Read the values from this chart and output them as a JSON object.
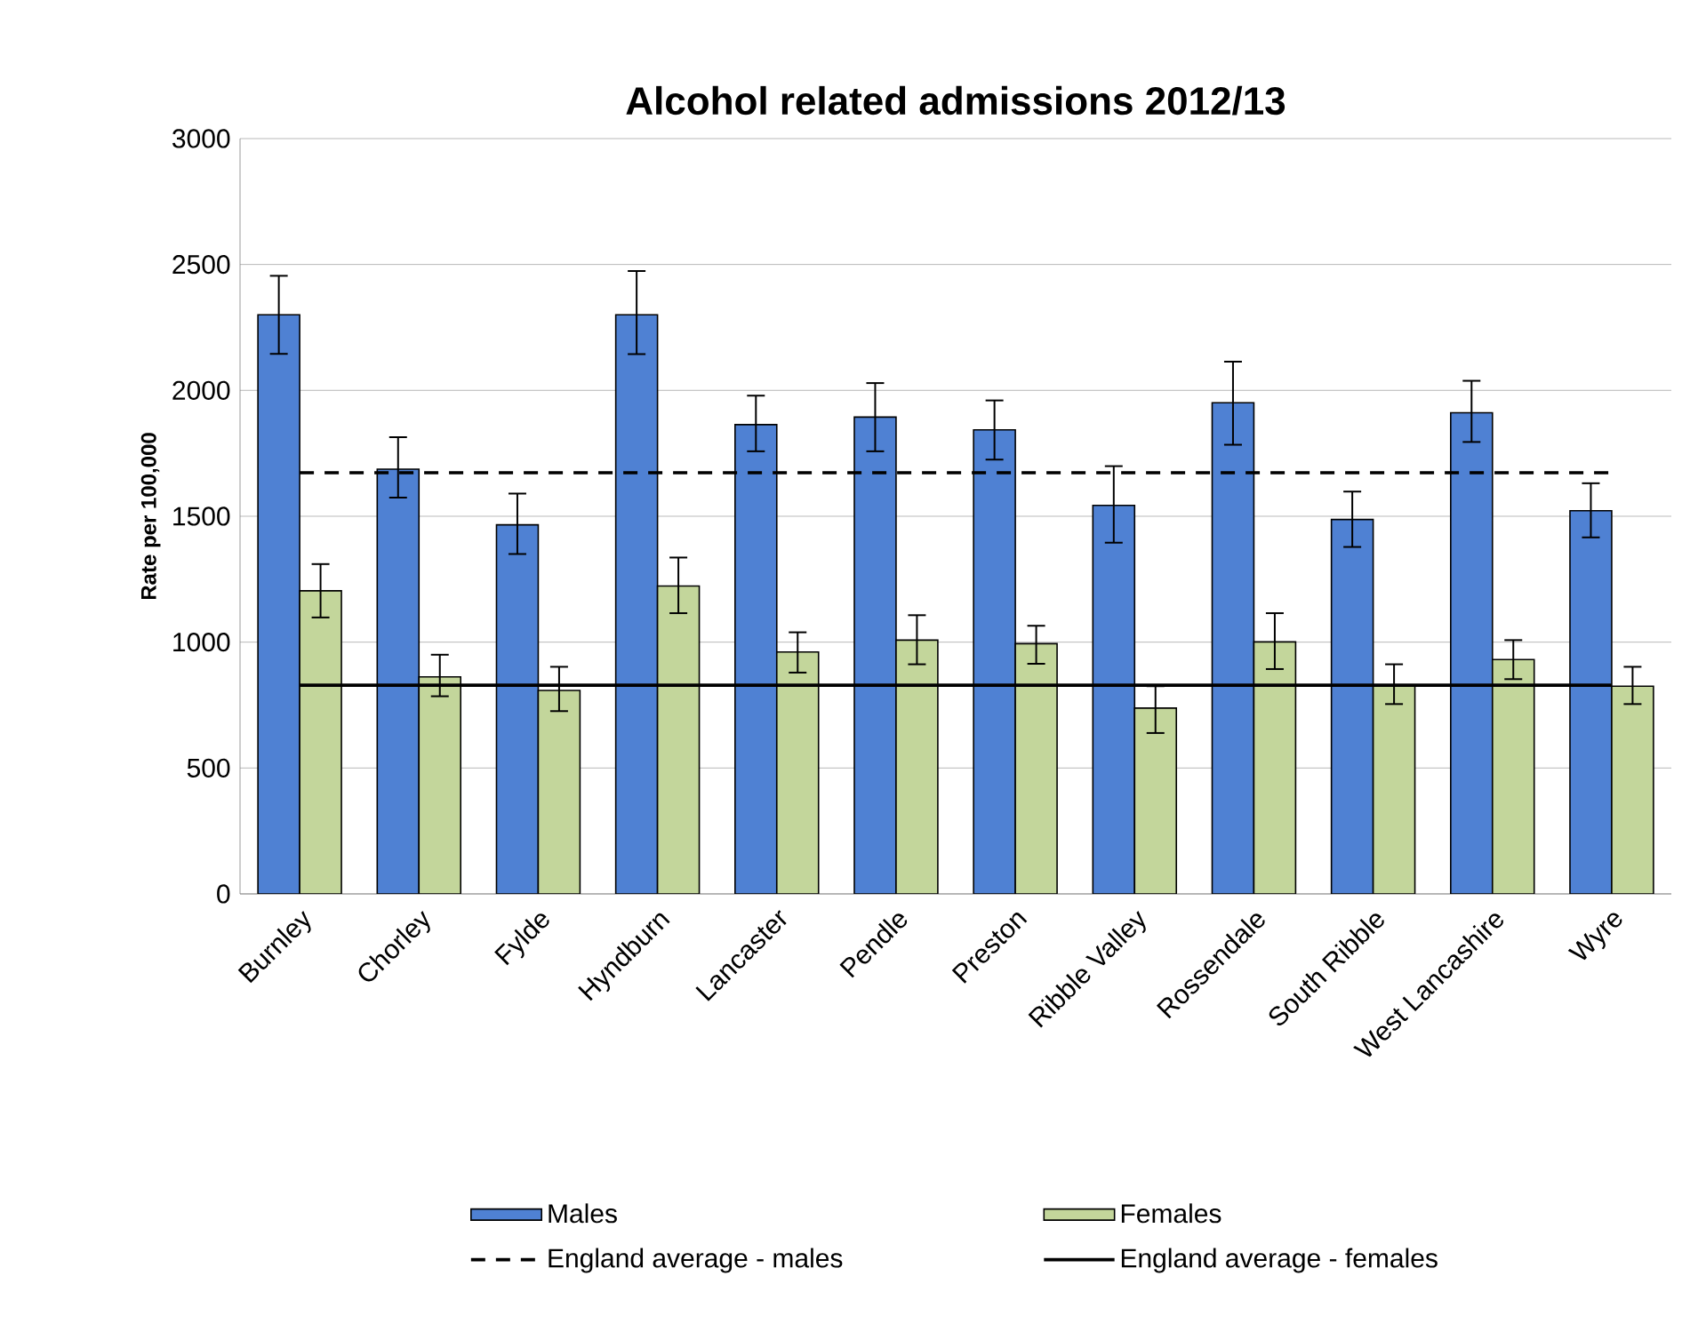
{
  "chart_data": {
    "type": "bar",
    "title": "Alcohol related admissions 2012/13",
    "ylabel": "Rate per 100,000",
    "categories": [
      "Burnley",
      "Chorley",
      "Fylde",
      "Hyndburn",
      "Lancaster",
      "Pendle",
      "Preston",
      "Ribble Valley",
      "Rossendale",
      "South Ribble",
      "West Lancashire",
      "Wyre"
    ],
    "series": [
      {
        "name": "Males",
        "color": "#4f81d3",
        "values": [
          2300,
          1687,
          1466,
          2300,
          1864,
          1894,
          1843,
          1543,
          1951,
          1487,
          1911,
          1522
        ],
        "errors": [
          [
            2145,
            2455
          ],
          [
            1574,
            1814
          ],
          [
            1350,
            1590
          ],
          [
            2144,
            2474
          ],
          [
            1758,
            1979
          ],
          [
            1758,
            2029
          ],
          [
            1725,
            1960
          ],
          [
            1395,
            1699
          ],
          [
            1784,
            2114
          ],
          [
            1378,
            1598
          ],
          [
            1795,
            2038
          ],
          [
            1416,
            1631
          ]
        ]
      },
      {
        "name": "Females",
        "color": "#c3d69b",
        "values": [
          1204,
          862,
          808,
          1223,
          961,
          1008,
          994,
          738,
          1001,
          825,
          931,
          825
        ],
        "errors": [
          [
            1098,
            1310
          ],
          [
            785,
            950
          ],
          [
            726,
            902
          ],
          [
            1115,
            1336
          ],
          [
            879,
            1039
          ],
          [
            912,
            1107
          ],
          [
            914,
            1065
          ],
          [
            639,
            825
          ],
          [
            893,
            1115
          ],
          [
            754,
            912
          ],
          [
            853,
            1008
          ],
          [
            754,
            902
          ]
        ]
      }
    ],
    "ref_lines": [
      {
        "axis": "y",
        "value": 1673,
        "label": "England average - males",
        "color": "#000000",
        "line_style": "dashed"
      },
      {
        "axis": "y",
        "value": 829,
        "label": "England average - females",
        "color": "#000000",
        "line_style": "solid"
      }
    ],
    "ylim": [
      0,
      3000
    ],
    "yticks": [
      0,
      500,
      1000,
      1500,
      2000,
      2500,
      3000
    ],
    "grid": "y",
    "legend": "bottom"
  }
}
